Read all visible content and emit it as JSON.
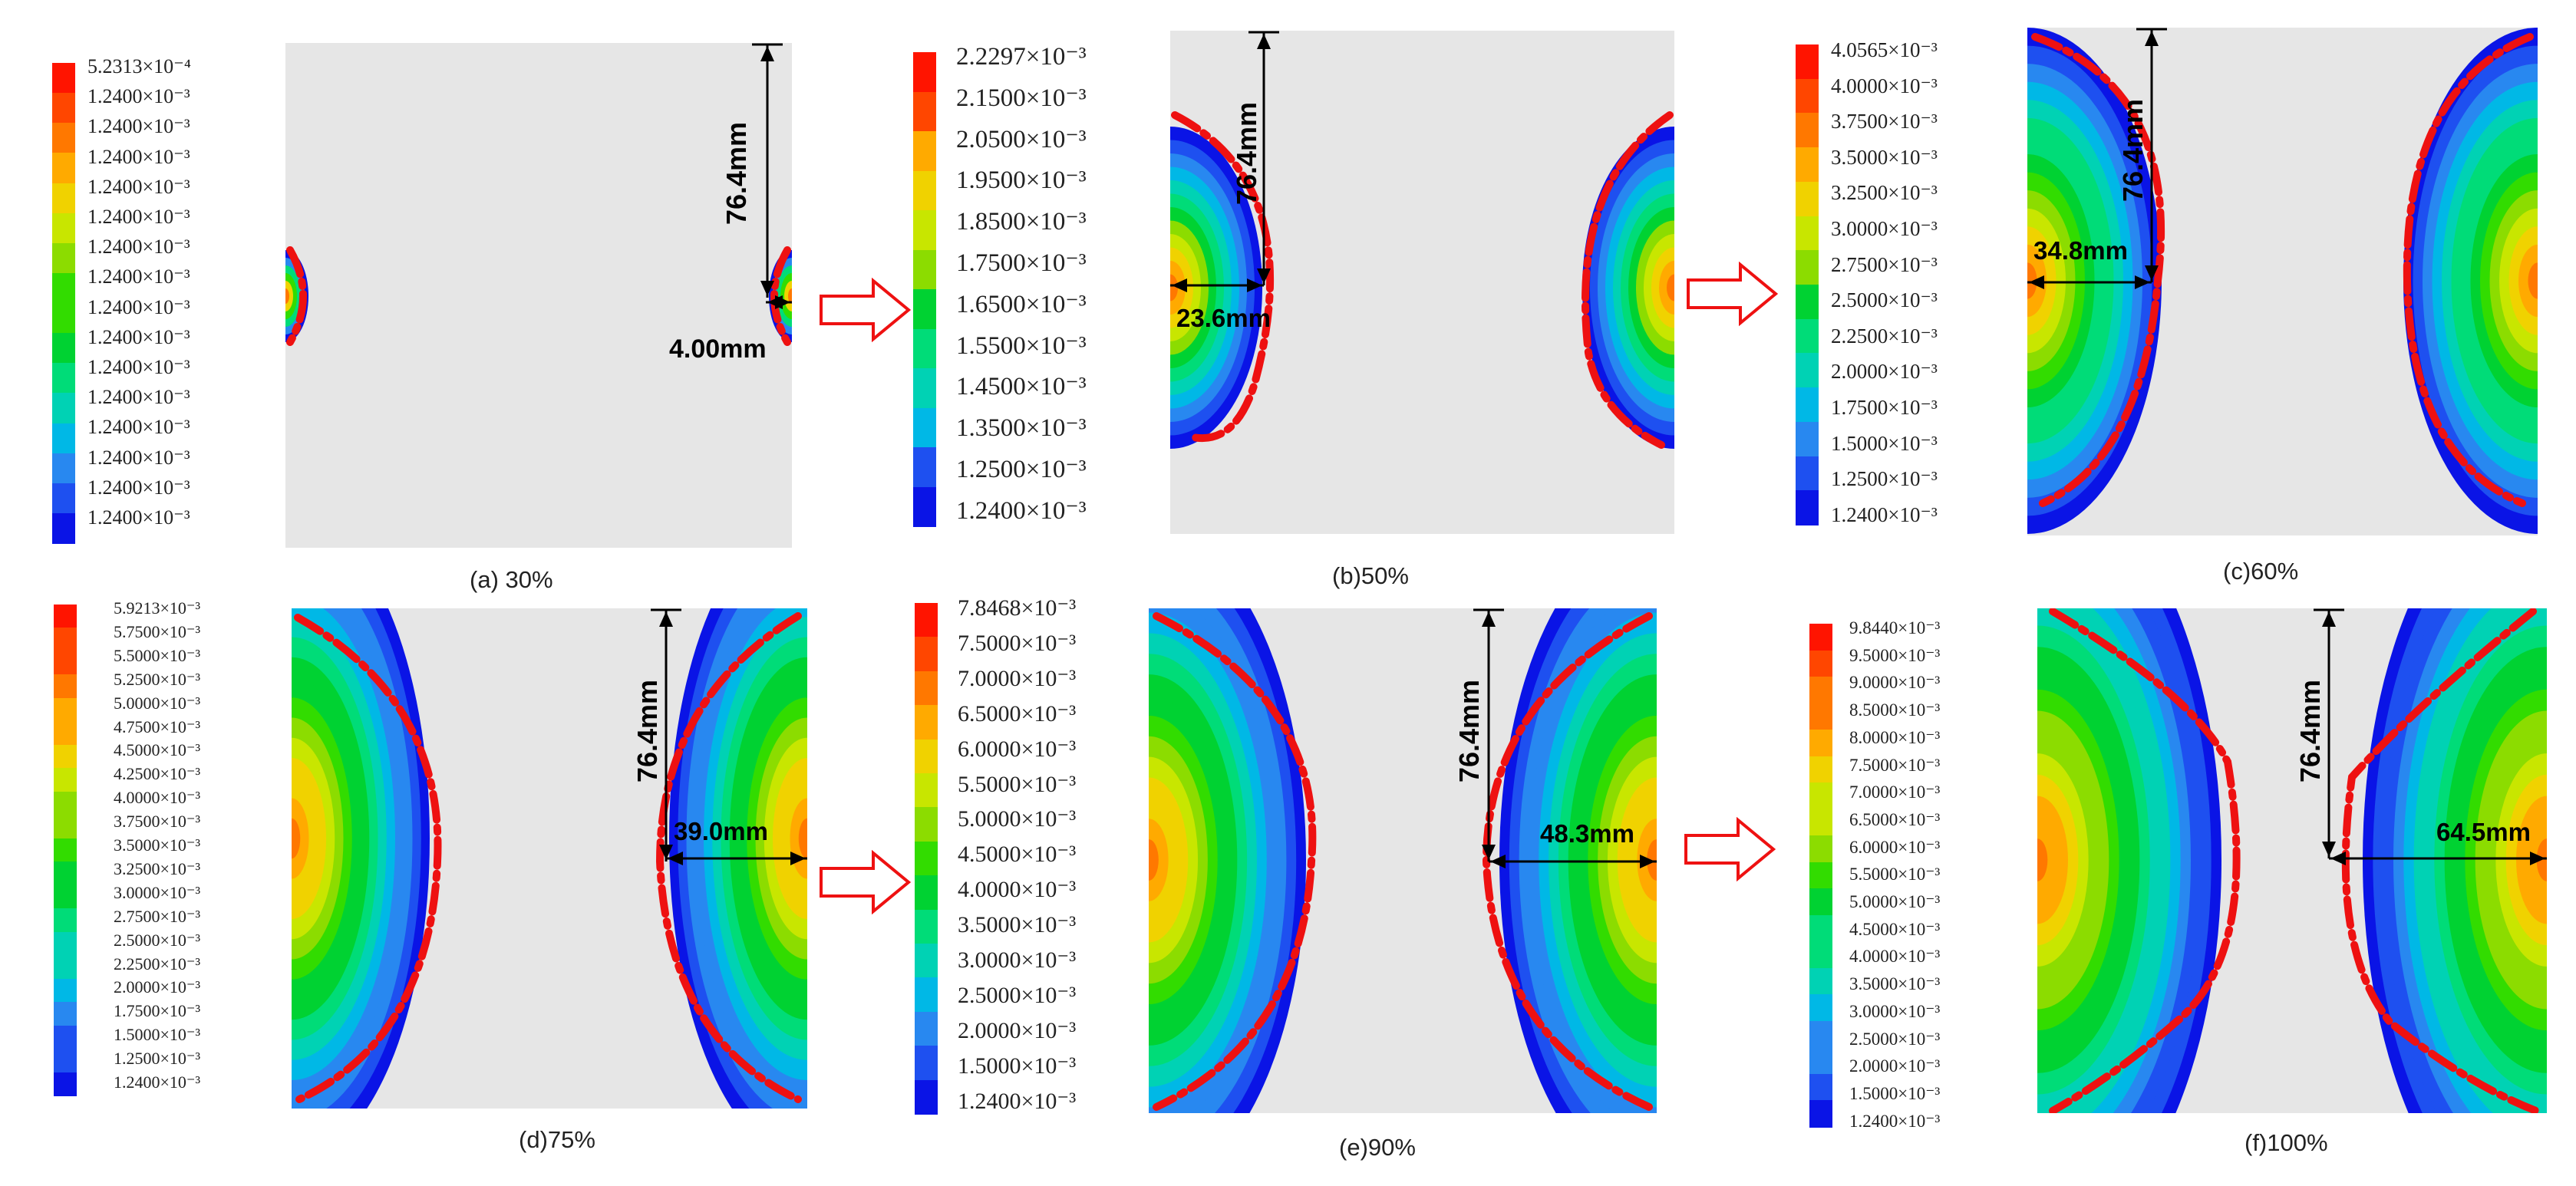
{
  "colors": {
    "plot_bg": "#e6e6e6",
    "dash": "#ee1111",
    "arrow": "#ee1111",
    "scale": [
      "#0a14e6",
      "#1e50f0",
      "#2888f0",
      "#00b8e6",
      "#00d2b4",
      "#00dc78",
      "#00d232",
      "#32dc00",
      "#8cdc00",
      "#c8e600",
      "#f0d200",
      "#ffaa00",
      "#ff7800",
      "#ff4600",
      "#ff1400"
    ]
  },
  "panels": [
    {
      "caption": "(a) 30%",
      "legend": [
        "5.2313×10⁻⁴",
        "1.2400×10⁻³",
        "1.2400×10⁻³",
        "1.2400×10⁻³",
        "1.2400×10⁻³",
        "1.2400×10⁻³",
        "1.2400×10⁻³",
        "1.2400×10⁻³",
        "1.2400×10⁻³",
        "1.2400×10⁻³",
        "1.2400×10⁻³",
        "1.2400×10⁻³",
        "1.2400×10⁻³",
        "1.2400×10⁻³",
        "1.2400×10⁻³",
        "1.2400×10⁻³"
      ],
      "vertical_dim": "76.4mm",
      "horizontal_dim": "4.00mm"
    },
    {
      "caption": "(b)50%",
      "legend": [
        "2.2297×10⁻³",
        "2.1500×10⁻³",
        "2.0500×10⁻³",
        "1.9500×10⁻³",
        "1.8500×10⁻³",
        "1.7500×10⁻³",
        "1.6500×10⁻³",
        "1.5500×10⁻³",
        "1.4500×10⁻³",
        "1.3500×10⁻³",
        "1.2500×10⁻³",
        "1.2400×10⁻³"
      ],
      "vertical_dim": "76.4mm",
      "horizontal_dim": "23.6mm"
    },
    {
      "caption": "(c)60%",
      "legend": [
        "4.0565×10⁻³",
        "4.0000×10⁻³",
        "3.7500×10⁻³",
        "3.5000×10⁻³",
        "3.2500×10⁻³",
        "3.0000×10⁻³",
        "2.7500×10⁻³",
        "2.5000×10⁻³",
        "2.2500×10⁻³",
        "2.0000×10⁻³",
        "1.7500×10⁻³",
        "1.5000×10⁻³",
        "1.2500×10⁻³",
        "1.2400×10⁻³"
      ],
      "vertical_dim": "76.4mm",
      "horizontal_dim": "34.8mm"
    },
    {
      "caption": "(d)75%",
      "legend": [
        "5.9213×10⁻³",
        "5.7500×10⁻³",
        "5.5000×10⁻³",
        "5.2500×10⁻³",
        "5.0000×10⁻³",
        "4.7500×10⁻³",
        "4.5000×10⁻³",
        "4.2500×10⁻³",
        "4.0000×10⁻³",
        "3.7500×10⁻³",
        "3.5000×10⁻³",
        "3.2500×10⁻³",
        "3.0000×10⁻³",
        "2.7500×10⁻³",
        "2.5000×10⁻³",
        "2.2500×10⁻³",
        "2.0000×10⁻³",
        "1.7500×10⁻³",
        "1.5000×10⁻³",
        "1.2500×10⁻³",
        "1.2400×10⁻³"
      ],
      "vertical_dim": "76.4mm",
      "horizontal_dim": "39.0mm"
    },
    {
      "caption": "(e)90%",
      "legend": [
        "7.8468×10⁻³",
        "7.5000×10⁻³",
        "7.0000×10⁻³",
        "6.5000×10⁻³",
        "6.0000×10⁻³",
        "5.5000×10⁻³",
        "5.0000×10⁻³",
        "4.5000×10⁻³",
        "4.0000×10⁻³",
        "3.5000×10⁻³",
        "3.0000×10⁻³",
        "2.5000×10⁻³",
        "2.0000×10⁻³",
        "1.5000×10⁻³",
        "1.2400×10⁻³"
      ],
      "vertical_dim": "76.4mm",
      "horizontal_dim": "48.3mm"
    },
    {
      "caption": "(f)100%",
      "legend": [
        "9.8440×10⁻³",
        "9.5000×10⁻³",
        "9.0000×10⁻³",
        "8.5000×10⁻³",
        "8.0000×10⁻³",
        "7.5000×10⁻³",
        "7.0000×10⁻³",
        "6.5000×10⁻³",
        "6.0000×10⁻³",
        "5.5000×10⁻³",
        "5.0000×10⁻³",
        "4.5000×10⁻³",
        "4.0000×10⁻³",
        "3.5000×10⁻³",
        "3.0000×10⁻³",
        "2.5000×10⁻³",
        "2.0000×10⁻³",
        "1.5000×10⁻³",
        "1.2400×10⁻³"
      ],
      "vertical_dim": "76.4mm",
      "horizontal_dim": "64.5mm"
    }
  ],
  "arrows": [
    "a-to-b",
    "b-to-c",
    "d-to-e",
    "e-to-f"
  ]
}
